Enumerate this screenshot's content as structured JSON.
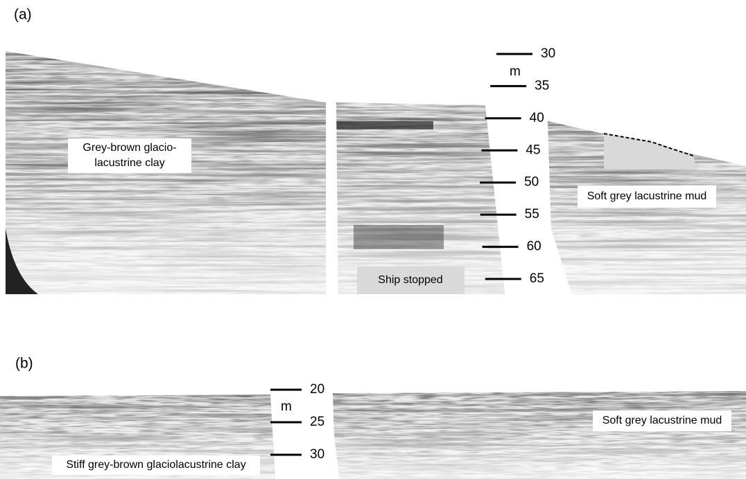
{
  "panel_a": {
    "label": "(a)",
    "scale": {
      "unit": "m",
      "ticks": [
        30,
        35,
        40,
        45,
        50,
        55,
        60,
        65
      ]
    },
    "clay_label": [
      "Grey-brown glacio-",
      "lacustrine clay"
    ],
    "mud_label": "Soft grey lacustrine mud",
    "ship_label": "Ship stopped"
  },
  "panel_b": {
    "label": "(b)",
    "scale": {
      "unit": "m",
      "ticks": [
        20,
        25,
        30
      ]
    },
    "clay_label": "Stiff grey-brown glaciolacustrine clay",
    "mud_label": "Soft grey lacustrine mud"
  }
}
